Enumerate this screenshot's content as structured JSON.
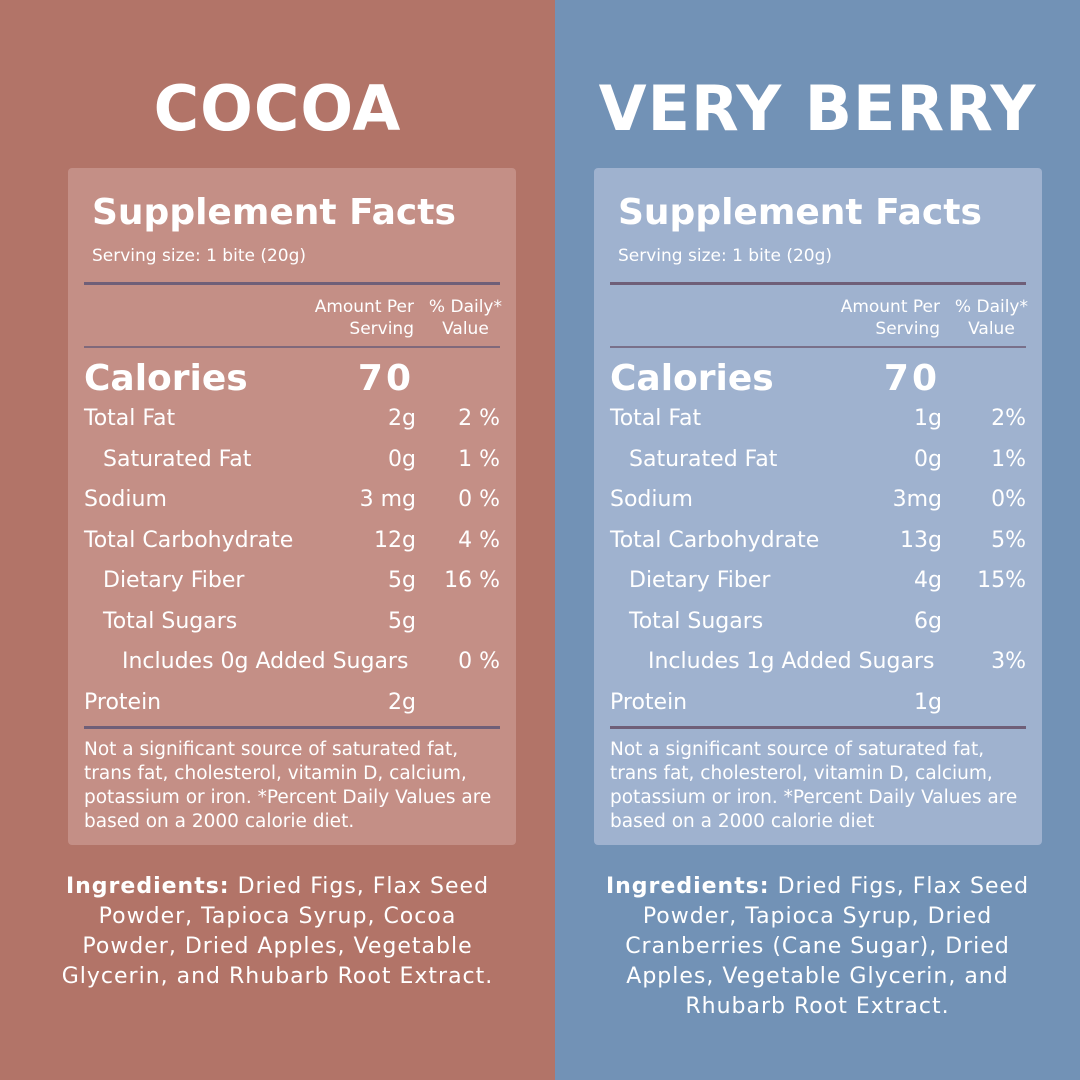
{
  "products": [
    {
      "title": "COCOA",
      "panel_title": "Supplement Facts",
      "serving": "Serving size: 1 bite (20g)",
      "hdr_amount": [
        "Amount Per",
        "Serving"
      ],
      "hdr_dv": [
        "% Daily*",
        "Value"
      ],
      "calories_label": "Calories",
      "calories": "70",
      "rows": [
        {
          "label": "Total Fat",
          "amount": "2g",
          "dv": "2 %",
          "indent": 0
        },
        {
          "label": "Saturated Fat",
          "amount": "0g",
          "dv": "1 %",
          "indent": 1
        },
        {
          "label": "Sodium",
          "amount": "3 mg",
          "dv": "0 %",
          "indent": 0
        },
        {
          "label": "Total Carbohydrate",
          "amount": "12g",
          "dv": "4 %",
          "indent": 0
        },
        {
          "label": "Dietary Fiber",
          "amount": "5g",
          "dv": "16 %",
          "indent": 1
        },
        {
          "label": "Total Sugars",
          "amount": "5g",
          "dv": "",
          "indent": 1
        },
        {
          "label": "Includes 0g Added Sugars",
          "amount": "",
          "dv": "0 %",
          "indent": 2
        },
        {
          "label": "Protein",
          "amount": "2g",
          "dv": "",
          "indent": 0
        }
      ],
      "footnote": "Not a significant source of saturated fat, trans fat, cholesterol, vitamin D, calcium, potassium or iron. *Percent Daily Values are based on a 2000 calorie diet.",
      "ingredients_label": "Ingredients:",
      "ingredients": "Dried Figs, Flax Seed Powder, Tapioca Syrup, Cocoa Powder, Dried Apples, Vegetable Glycerin, and Rhubarb Root Extract."
    },
    {
      "title": "VERY BERRY",
      "panel_title": "Supplement Facts",
      "serving": "Serving size: 1 bite (20g)",
      "hdr_amount": [
        "Amount Per",
        "Serving"
      ],
      "hdr_dv": [
        "% Daily*",
        "Value"
      ],
      "calories_label": "Calories",
      "calories": "70",
      "rows": [
        {
          "label": "Total Fat",
          "amount": "1g",
          "dv": "2%",
          "indent": 0
        },
        {
          "label": "Saturated Fat",
          "amount": "0g",
          "dv": "1%",
          "indent": 1
        },
        {
          "label": "Sodium",
          "amount": "3mg",
          "dv": "0%",
          "indent": 0
        },
        {
          "label": "Total Carbohydrate",
          "amount": "13g",
          "dv": "5%",
          "indent": 0
        },
        {
          "label": "Dietary Fiber",
          "amount": "4g",
          "dv": "15%",
          "indent": 1
        },
        {
          "label": "Total Sugars",
          "amount": "6g",
          "dv": "",
          "indent": 1
        },
        {
          "label": "Includes 1g Added Sugars",
          "amount": "",
          "dv": "3%",
          "indent": 2
        },
        {
          "label": "Protein",
          "amount": "1g",
          "dv": "",
          "indent": 0
        }
      ],
      "footnote": "Not a significant source of saturated fat, trans fat, cholesterol, vitamin D, calcium, potassium or iron. *Percent Daily Values are based on a 2000 calorie diet",
      "ingredients_label": "Ingredients:",
      "ingredients": "Dried Figs, Flax Seed Powder, Tapioca Syrup, Dried Cranberries (Cane Sugar), Dried Apples, Vegetable Glycerin, and Rhubarb Root Extract."
    }
  ],
  "colors": {
    "cocoa_bg": "#b27468",
    "berry_bg": "#7292b6"
  }
}
